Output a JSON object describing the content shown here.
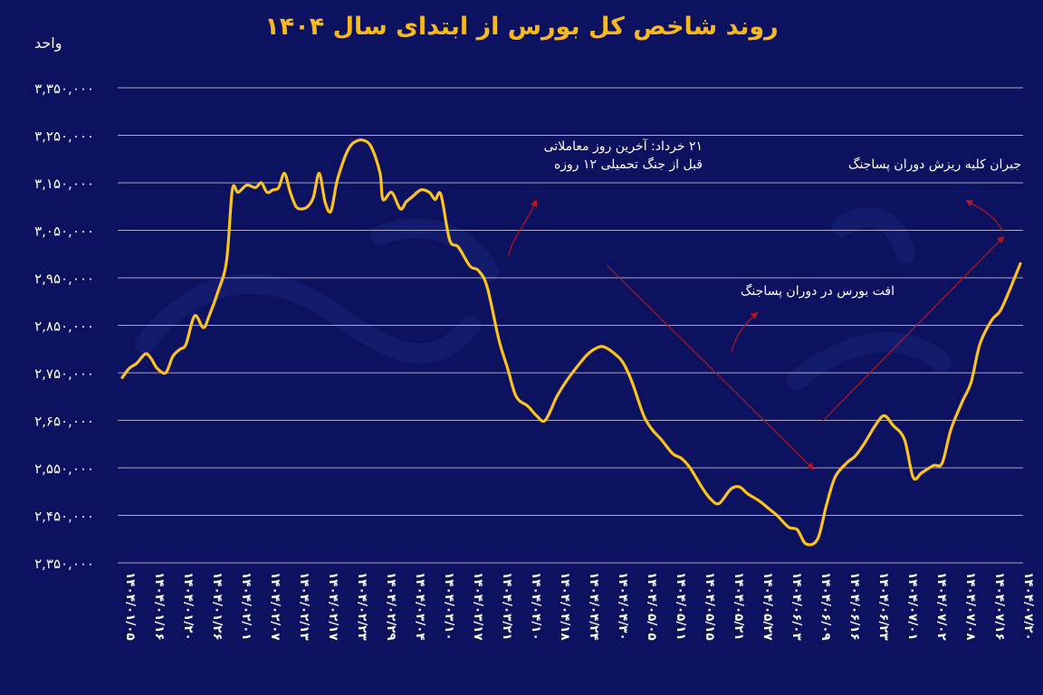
{
  "chart_data": {
    "type": "line",
    "title": "روند شاخص کل بورس از ابتدای سال ۱۴۰۴",
    "ylabel": "واحد",
    "xlabel": "",
    "ylim": [
      2350000,
      3350000
    ],
    "yticks": [
      3350000,
      3250000,
      3150000,
      3050000,
      2950000,
      2850000,
      2750000,
      2650000,
      2550000,
      2450000,
      2350000
    ],
    "ytick_labels": [
      "۳,۳۵۰,۰۰۰",
      "۳,۲۵۰,۰۰۰",
      "۳,۱۵۰,۰۰۰",
      "۳,۰۵۰,۰۰۰",
      "۲,۹۵۰,۰۰۰",
      "۲,۸۵۰,۰۰۰",
      "۲,۷۵۰,۰۰۰",
      "۲,۶۵۰,۰۰۰",
      "۲,۵۵۰,۰۰۰",
      "۲,۴۵۰,۰۰۰",
      "۲,۳۵۰,۰۰۰"
    ],
    "categories": [
      "۱۴۰۴/۰۱/۰۵",
      "۱۴۰۴/۰۱/۱۶",
      "۱۴۰۴/۰۱/۲۰",
      "۱۴۰۴/۰۱/۲۶",
      "۱۴۰۴/۰۲/۰۱",
      "۱۴۰۴/۰۲/۰۷",
      "۱۴۰۴/۰۲/۱۳",
      "۱۴۰۴/۰۲/۱۷",
      "۱۴۰۴/۰۲/۲۳",
      "۱۴۰۴/۰۲/۲۹",
      "۱۴۰۴/۰۳/۰۴",
      "۱۴۰۴/۰۳/۱۰",
      "۱۴۰۴/۰۳/۱۷",
      "۱۴۰۴/۰۳/۲۱",
      "۱۴۰۴/۰۴/۱۰",
      "۱۴۰۴/۰۴/۱۸",
      "۱۴۰۴/۰۴/۲۴",
      "۱۴۰۴/۰۴/۳۰",
      "۱۴۰۴/۰۵/۰۵",
      "۱۴۰۴/۰۵/۱۱",
      "۱۴۰۴/۰۵/۱۵",
      "۱۴۰۴/۰۵/۲۱",
      "۱۴۰۴/۰۵/۲۷",
      "۱۴۰۴/۰۶/۰۳",
      "۱۴۰۴/۰۶/۰۹",
      "۱۴۰۴/۰۶/۱۶",
      "۱۴۰۴/۰۶/۲۳",
      "۱۴۰۴/۰۷/۰۱",
      "۱۴۰۴/۰۷/۰۲",
      "۱۴۰۴/۰۷/۰۸",
      "۱۴۰۴/۰۷/۱۶",
      "۱۴۰۴/۰۷/۲۰"
    ],
    "series": [
      {
        "color": "#fcc21d",
        "x": [
          0,
          0.25,
          0.5,
          0.8,
          1.0,
          1.2,
          1.5,
          1.75,
          2.0,
          2.2,
          2.5,
          2.8,
          3.0,
          3.3,
          3.6,
          3.8,
          4.0,
          4.3,
          4.6,
          4.8,
          5.0,
          5.2,
          5.4,
          5.6,
          5.8,
          6.0,
          6.2,
          6.4,
          6.6,
          6.8,
          7.0,
          7.2,
          7.4,
          7.6,
          7.8,
          8.0,
          8.3,
          8.6,
          8.9,
          9.0,
          9.3,
          9.6,
          9.8,
          10.0,
          10.3,
          10.6,
          10.8,
          11.0,
          11.3,
          11.6,
          12.0,
          12.3,
          12.6,
          13.0,
          13.3,
          13.6,
          14.0,
          14.3,
          14.6,
          15.0,
          15.3,
          15.6,
          16.0,
          16.3,
          16.6,
          17.0,
          17.3,
          17.6,
          18.0,
          18.3,
          18.6,
          19.0,
          19.3,
          19.6,
          20.0,
          20.3,
          20.6,
          21.0,
          21.3,
          21.6,
          22.0,
          22.3,
          22.6,
          23.0,
          23.3,
          23.6,
          24.0,
          24.3,
          24.6,
          25.0,
          25.3,
          25.6,
          26.0,
          26.3,
          26.6,
          27.0,
          27.3,
          27.6,
          28.0,
          28.3,
          28.6,
          29.0,
          29.3,
          29.6,
          30.0,
          30.3,
          30.6,
          31.0
        ],
        "values": [
          2740000,
          2760000,
          2770000,
          2790000,
          2780000,
          2760000,
          2750000,
          2785000,
          2800000,
          2810000,
          2870000,
          2845000,
          2870000,
          2920000,
          2985000,
          3135000,
          3130000,
          3145000,
          3140000,
          3150000,
          3130000,
          3135000,
          3140000,
          3170000,
          3130000,
          3100000,
          3095000,
          3100000,
          3120000,
          3170000,
          3110000,
          3090000,
          3150000,
          3190000,
          3220000,
          3235000,
          3240000,
          3225000,
          3170000,
          3115000,
          3130000,
          3095000,
          3110000,
          3120000,
          3135000,
          3130000,
          3115000,
          3125000,
          3030000,
          3015000,
          2975000,
          2965000,
          2930000,
          2820000,
          2760000,
          2700000,
          2680000,
          2660000,
          2650000,
          2700000,
          2730000,
          2755000,
          2785000,
          2800000,
          2805000,
          2790000,
          2770000,
          2730000,
          2660000,
          2630000,
          2610000,
          2580000,
          2570000,
          2550000,
          2510000,
          2485000,
          2475000,
          2505000,
          2510000,
          2495000,
          2480000,
          2465000,
          2450000,
          2425000,
          2420000,
          2390000,
          2400000,
          2470000,
          2530000,
          2560000,
          2575000,
          2600000,
          2640000,
          2660000,
          2640000,
          2610000,
          2530000,
          2540000,
          2555000,
          2560000,
          2630000,
          2690000,
          2730000,
          2810000,
          2860000,
          2880000,
          2920000,
          2980000
        ]
      }
    ],
    "annotations": [
      {
        "text": "۲۱ خرداد: آخرین روز معاملاتی\nقبل از جنگ تحمیلی ۱۲ روزه"
      },
      {
        "text": "جبران کلیه ریزش دوران پساجنگ"
      },
      {
        "text": "افت بورس در دوران پساجنگ"
      }
    ],
    "grid": true,
    "legend": "none",
    "colors": {
      "background": "#0c1160",
      "line": "#fcc21d",
      "title": "#f7b91c",
      "arrow": "#b5171f",
      "grid": "#ffffff",
      "text": "#ffffff"
    }
  }
}
